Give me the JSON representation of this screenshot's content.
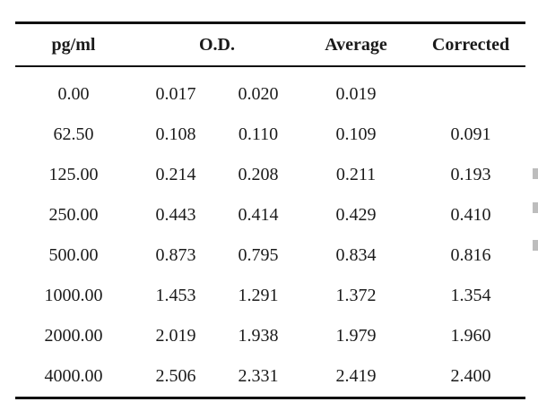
{
  "table": {
    "headers": {
      "pg": "pg/ml",
      "od": "O.D.",
      "average": "Average",
      "corrected": "Corrected"
    },
    "rows": [
      {
        "pg": "0.00",
        "od1": "0.017",
        "od2": "0.020",
        "average": "0.019",
        "corrected": ""
      },
      {
        "pg": "62.50",
        "od1": "0.108",
        "od2": "0.110",
        "average": "0.109",
        "corrected": "0.091"
      },
      {
        "pg": "125.00",
        "od1": "0.214",
        "od2": "0.208",
        "average": "0.211",
        "corrected": "0.193"
      },
      {
        "pg": "250.00",
        "od1": "0.443",
        "od2": "0.414",
        "average": "0.429",
        "corrected": "0.410"
      },
      {
        "pg": "500.00",
        "od1": "0.873",
        "od2": "0.795",
        "average": "0.834",
        "corrected": "0.816"
      },
      {
        "pg": "1000.00",
        "od1": "1.453",
        "od2": "1.291",
        "average": "1.372",
        "corrected": "1.354"
      },
      {
        "pg": "2000.00",
        "od1": "2.019",
        "od2": "1.938",
        "average": "1.979",
        "corrected": "1.960"
      },
      {
        "pg": "4000.00",
        "od1": "2.506",
        "od2": "2.331",
        "average": "2.419",
        "corrected": "2.400"
      }
    ]
  }
}
